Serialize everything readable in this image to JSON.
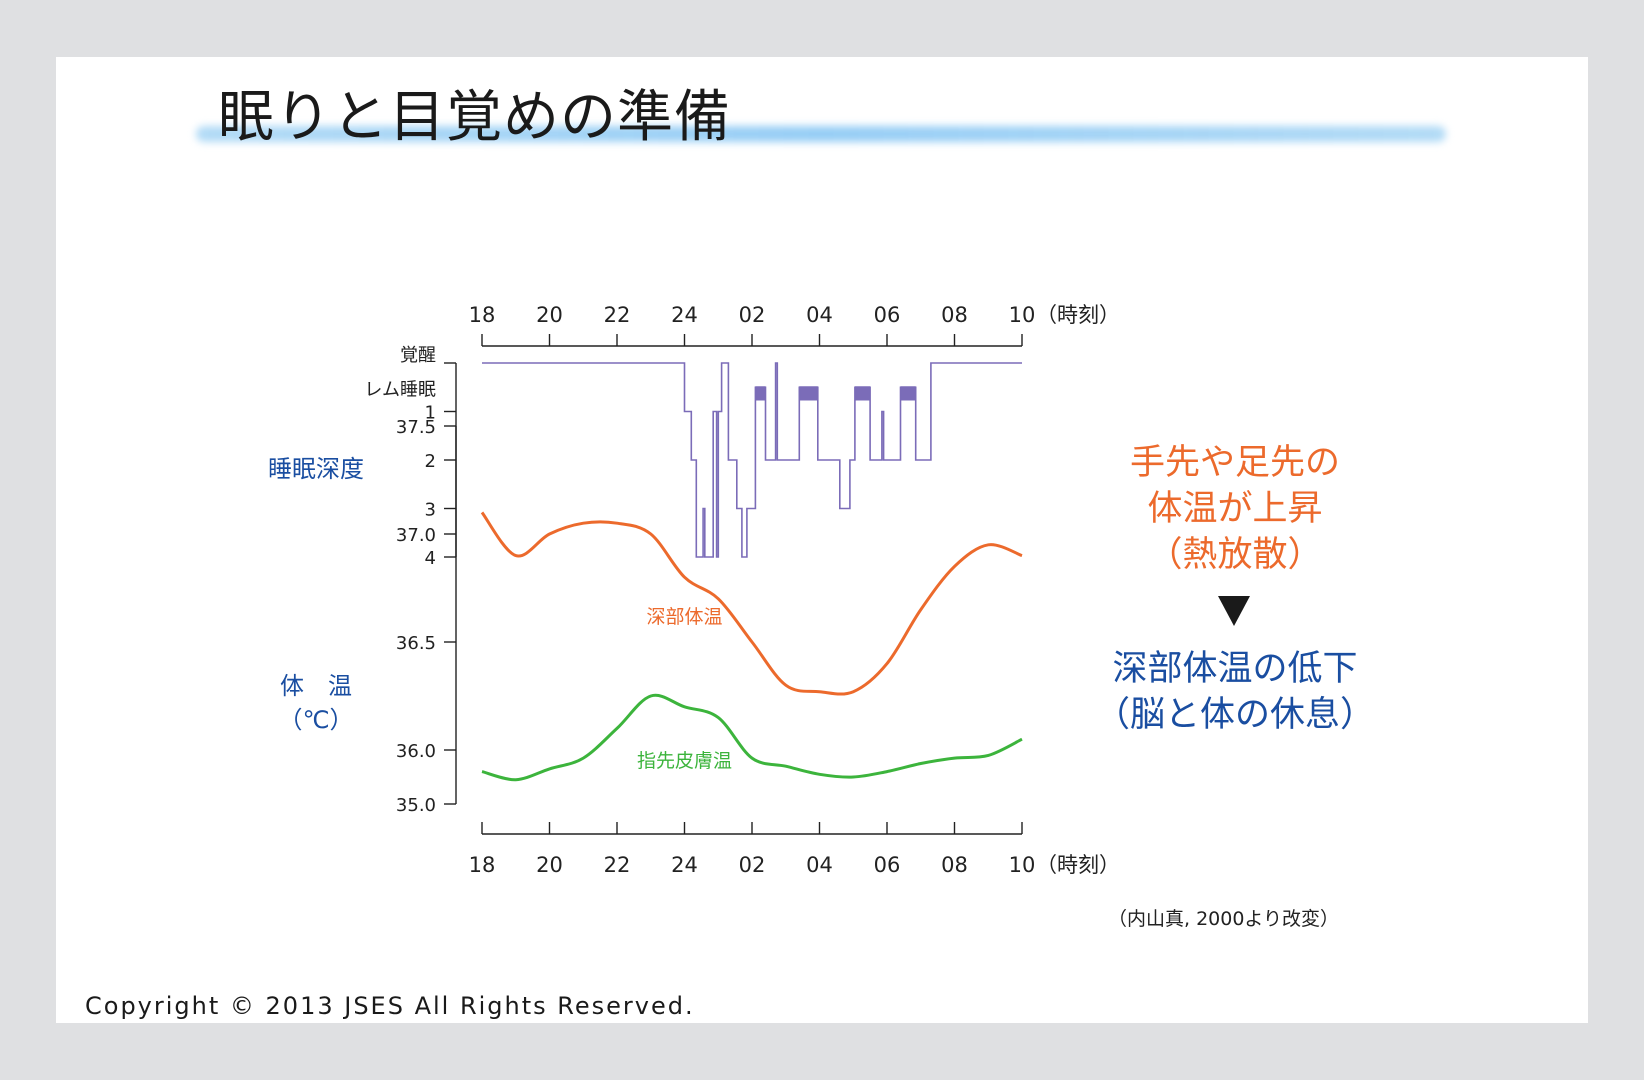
{
  "title": "眠りと目覚めの準備",
  "copyright": "Copyright © 2013 JSES All Rights Reserved.",
  "source": "（内山真, 2000より改変）",
  "note_orange": [
    "手先や足先の",
    "体温が上昇",
    "（熱放散）"
  ],
  "note_blue": [
    "深部体温の低下",
    "（脳と体の休息）"
  ],
  "colors": {
    "core": "#ec6a2c",
    "skin": "#3cb43c",
    "sleep": "#7b6cb8",
    "accent_blue": "#1a4ea1"
  },
  "chart_data": [
    {
      "type": "line",
      "name": "sleep_depth",
      "ylabel": "睡眠深度",
      "x_unit": "（時刻）",
      "x_ticks": [
        "18",
        "20",
        "22",
        "24",
        "02",
        "04",
        "06",
        "08",
        "10"
      ],
      "y_levels": [
        "覚醒",
        "レム睡眠",
        "1",
        "2",
        "3",
        "4"
      ],
      "y_values": [
        0,
        0.5,
        1,
        2,
        3,
        4
      ],
      "x_range_hours": [
        18,
        34
      ],
      "series": [
        {
          "values": [
            [
              18,
              0
            ],
            [
              24.0,
              0
            ],
            [
              24.0,
              1
            ],
            [
              24.2,
              1
            ],
            [
              24.2,
              2
            ],
            [
              24.35,
              2
            ],
            [
              24.35,
              4
            ],
            [
              24.55,
              4
            ],
            [
              24.55,
              3
            ],
            [
              24.6,
              3
            ],
            [
              24.6,
              4
            ],
            [
              24.85,
              4
            ],
            [
              24.85,
              1
            ],
            [
              24.95,
              1
            ],
            [
              24.95,
              4
            ],
            [
              25.0,
              4
            ],
            [
              25.0,
              1
            ],
            [
              25.1,
              1
            ],
            [
              25.1,
              0
            ],
            [
              25.3,
              0
            ],
            [
              25.3,
              2
            ],
            [
              25.55,
              2
            ],
            [
              25.55,
              3
            ],
            [
              25.7,
              3
            ],
            [
              25.7,
              4
            ],
            [
              25.85,
              4
            ],
            [
              25.85,
              3
            ],
            [
              26.1,
              3
            ],
            [
              26.1,
              0.5
            ],
            [
              26.4,
              0.5
            ],
            [
              26.4,
              2
            ],
            [
              26.7,
              2
            ],
            [
              26.7,
              0
            ],
            [
              26.75,
              0
            ],
            [
              26.75,
              2
            ],
            [
              27.4,
              2
            ],
            [
              27.4,
              0.5
            ],
            [
              27.95,
              0.5
            ],
            [
              27.95,
              2
            ],
            [
              28.6,
              2
            ],
            [
              28.6,
              3
            ],
            [
              28.9,
              3
            ],
            [
              28.9,
              2
            ],
            [
              29.05,
              2
            ],
            [
              29.05,
              0.5
            ],
            [
              29.5,
              0.5
            ],
            [
              29.5,
              2
            ],
            [
              29.85,
              2
            ],
            [
              29.85,
              1
            ],
            [
              29.9,
              1
            ],
            [
              29.9,
              2
            ],
            [
              30.4,
              2
            ],
            [
              30.4,
              0.5
            ],
            [
              30.85,
              0.5
            ],
            [
              30.85,
              2
            ],
            [
              31.3,
              2
            ],
            [
              31.3,
              0
            ],
            [
              34,
              0
            ]
          ]
        }
      ]
    },
    {
      "type": "line",
      "name": "body_temperature",
      "ylabel": "体　温",
      "yunit": "（℃）",
      "x_unit": "（時刻）",
      "x_ticks": [
        "18",
        "20",
        "22",
        "24",
        "02",
        "04",
        "06",
        "08",
        "10"
      ],
      "y_ticks": [
        "37.5",
        "37.0",
        "36.5",
        "36.0",
        "35.0"
      ],
      "ylim": [
        35.0,
        37.5
      ],
      "series": [
        {
          "name": "深部体温",
          "values": [
            [
              18,
              37.1
            ],
            [
              19,
              36.9
            ],
            [
              20,
              37.0
            ],
            [
              21,
              37.05
            ],
            [
              22,
              37.05
            ],
            [
              23,
              37.0
            ],
            [
              24,
              36.8
            ],
            [
              25,
              36.7
            ],
            [
              26,
              36.5
            ],
            [
              27,
              36.3
            ],
            [
              28,
              36.27
            ],
            [
              29,
              36.27
            ],
            [
              30,
              36.4
            ],
            [
              31,
              36.65
            ],
            [
              32,
              36.85
            ],
            [
              33,
              36.95
            ],
            [
              34,
              36.9
            ]
          ]
        },
        {
          "name": "指先皮膚温",
          "values": [
            [
              18,
              35.6
            ],
            [
              19,
              35.45
            ],
            [
              20,
              35.65
            ],
            [
              21,
              35.85
            ],
            [
              22,
              36.1
            ],
            [
              23,
              36.25
            ],
            [
              24,
              36.2
            ],
            [
              25,
              36.15
            ],
            [
              26,
              35.85
            ],
            [
              27,
              35.7
            ],
            [
              28,
              35.55
            ],
            [
              29,
              35.5
            ],
            [
              30,
              35.6
            ],
            [
              31,
              35.75
            ],
            [
              32,
              35.85
            ],
            [
              33,
              35.9
            ],
            [
              34,
              36.05
            ]
          ]
        }
      ]
    }
  ]
}
